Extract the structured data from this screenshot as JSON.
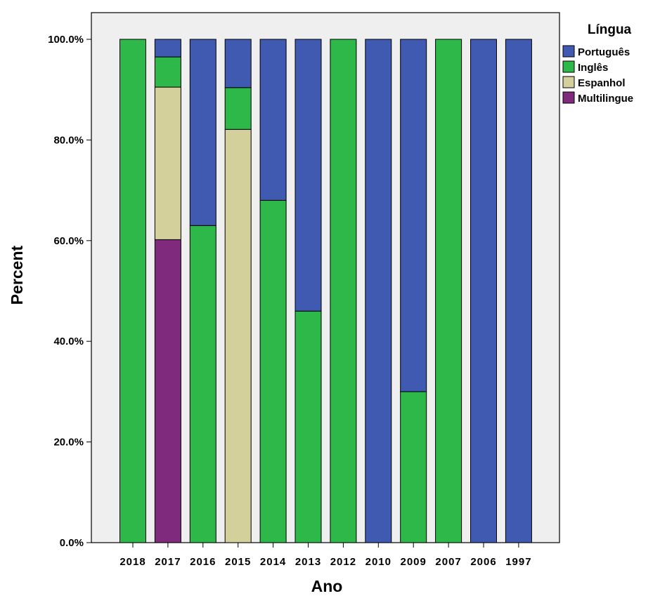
{
  "chart_data": {
    "type": "bar",
    "stacked": true,
    "xlabel": "Ano",
    "ylabel": "Percent",
    "ylim": [
      0,
      100
    ],
    "yticks": [
      "0.0%",
      "20.0%",
      "40.0%",
      "60.0%",
      "80.0%",
      "100.0%"
    ],
    "ytick_values": [
      0,
      20,
      40,
      60,
      80,
      100
    ],
    "grid": false,
    "legend": {
      "title": "Língua",
      "placement": "top-right"
    },
    "categories": [
      "2018",
      "2017",
      "2016",
      "2015",
      "2014",
      "2013",
      "2012",
      "2010",
      "2009",
      "2007",
      "2006",
      "1997"
    ],
    "series": [
      {
        "name": "Multilingue",
        "color": "#7f2a7c",
        "values": [
          0,
          60.2,
          0,
          0,
          0,
          0,
          0,
          0,
          0,
          0,
          0,
          0
        ]
      },
      {
        "name": "Espanhol",
        "color": "#d4d09c",
        "values": [
          0,
          30.3,
          0,
          82.1,
          0,
          0,
          0,
          0,
          0,
          0,
          0,
          0
        ]
      },
      {
        "name": "Inglês",
        "color": "#2eb84a",
        "values": [
          100,
          6.0,
          63.0,
          8.3,
          68.0,
          46.0,
          100,
          0,
          30.0,
          100,
          0,
          0
        ]
      },
      {
        "name": "Português",
        "color": "#3f5ab0",
        "values": [
          0,
          3.5,
          37.0,
          9.6,
          32.0,
          54.0,
          0,
          100,
          70.0,
          0,
          100,
          100
        ]
      }
    ],
    "legend_order": [
      "Português",
      "Inglês",
      "Espanhol",
      "Multilingue"
    ],
    "colors": {
      "plot_background": "#efefef",
      "frame": "#000000"
    }
  }
}
